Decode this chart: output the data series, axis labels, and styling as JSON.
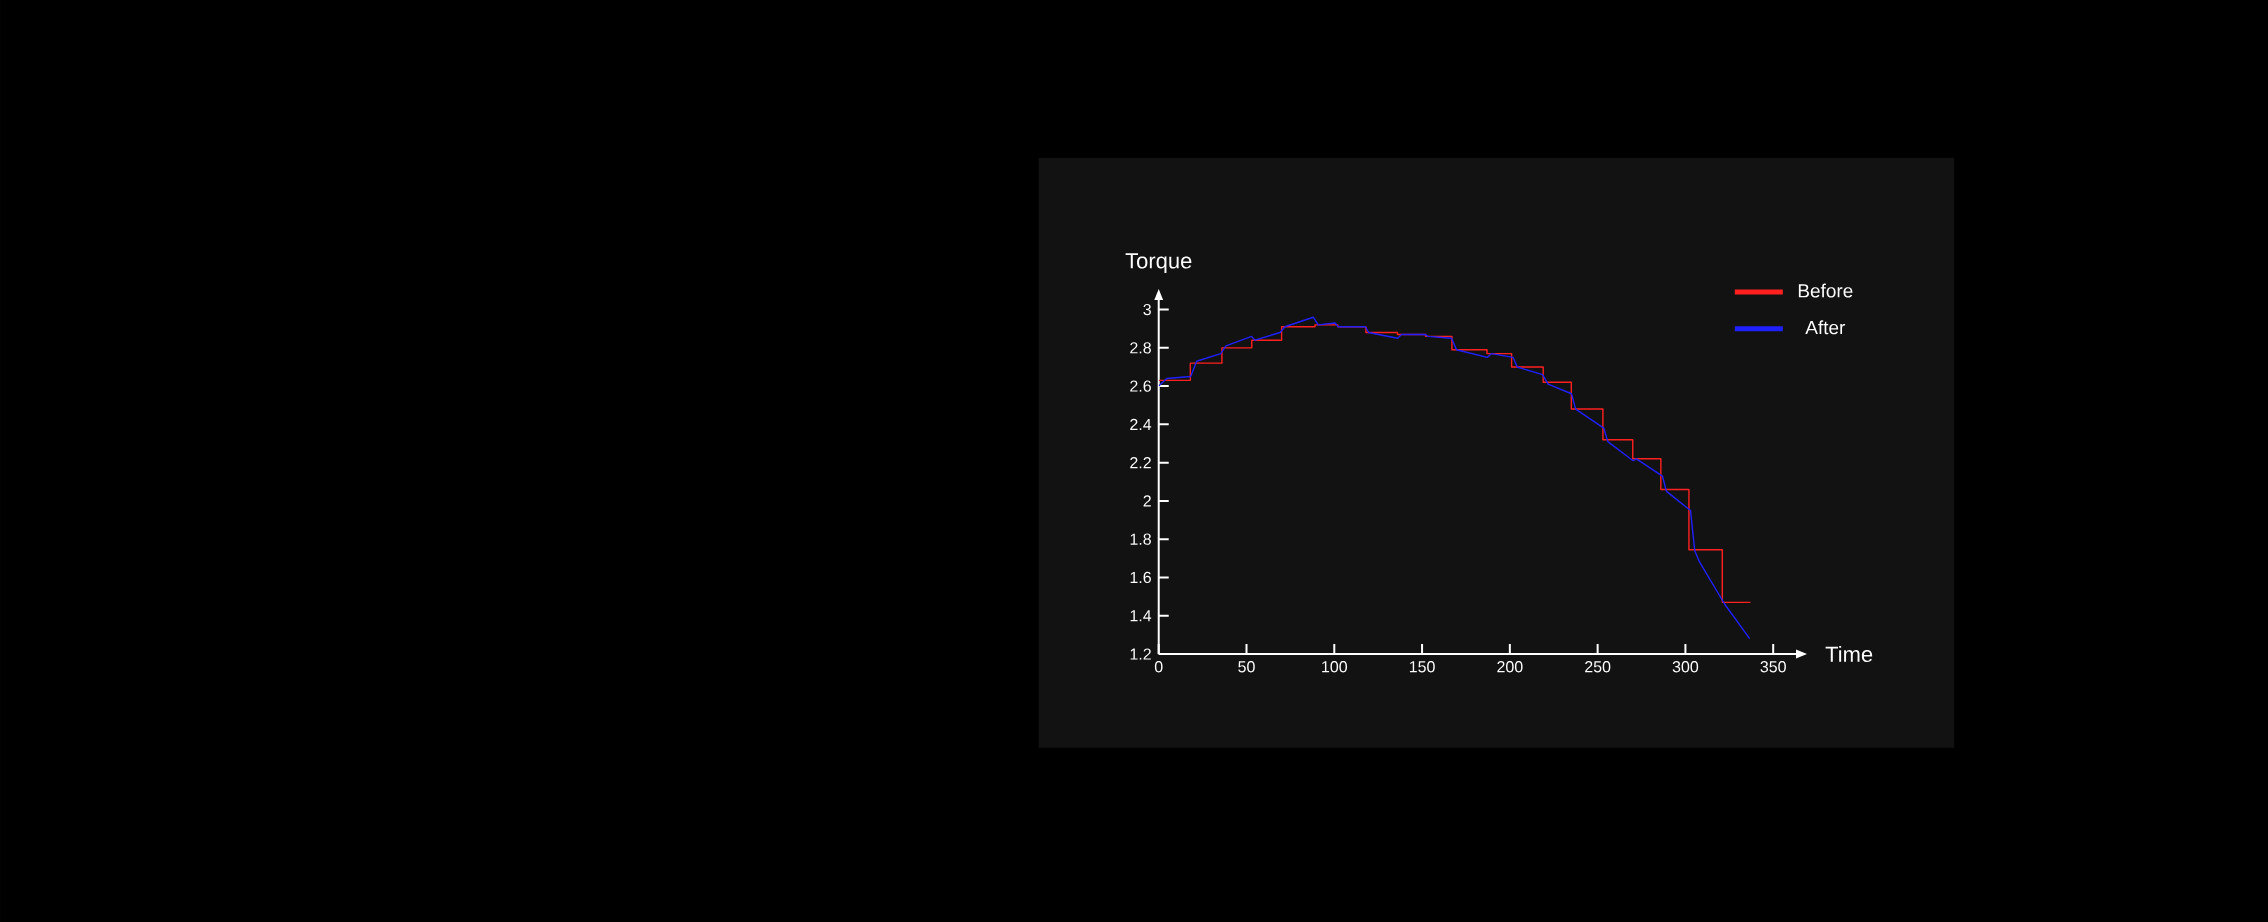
{
  "chart_data": {
    "type": "line",
    "xlabel": "Time",
    "ylabel": "Torque",
    "xlim": [
      0,
      363
    ],
    "ylim": [
      1.2,
      3.05
    ],
    "xticks": [
      0,
      50,
      100,
      150,
      200,
      250,
      300,
      350
    ],
    "yticks": [
      1.2,
      1.4,
      1.6,
      1.8,
      2,
      2.2,
      2.4,
      2.6,
      2.8,
      3
    ],
    "grid": false,
    "legend": "top right",
    "marker": "none",
    "line_style": "solid",
    "series": [
      {
        "name": "Before",
        "type": "step",
        "color": "#ff2020",
        "x": [
          0,
          18,
          36,
          53,
          70,
          89,
          102,
          118,
          136,
          152,
          167,
          187,
          201,
          219,
          235,
          253,
          270,
          286,
          302,
          321,
          337
        ],
        "values": [
          2.63,
          2.72,
          2.8,
          2.84,
          2.91,
          2.92,
          2.91,
          2.88,
          2.87,
          2.86,
          2.79,
          2.77,
          2.7,
          2.62,
          2.48,
          2.32,
          2.22,
          2.06,
          1.745,
          1.47,
          1.47
        ]
      },
      {
        "name": "After",
        "color": "#2020ff",
        "x": [
          0,
          4.6,
          18.2,
          21.6,
          35.3,
          38.3,
          52.9,
          54.8,
          69.1,
          71.9,
          88,
          90.9,
          100.4,
          102.3,
          117.8,
          119.5,
          136.1,
          138.3,
          151.6,
          153.5,
          166.8,
          169.6,
          187.1,
          189.6,
          201.9,
          204.2,
          218.6,
          221.8,
          235.1,
          237.5,
          253.5,
          255.8,
          270.2,
          272.1,
          286.9,
          289.2,
          302.9,
          305.3,
          308.1,
          322.4,
          336.6
        ],
        "values": [
          2.6,
          2.64,
          2.65,
          2.73,
          2.77,
          2.81,
          2.86,
          2.84,
          2.88,
          2.91,
          2.96,
          2.92,
          2.93,
          2.91,
          2.91,
          2.88,
          2.85,
          2.87,
          2.87,
          2.86,
          2.85,
          2.79,
          2.75,
          2.77,
          2.75,
          2.7,
          2.66,
          2.61,
          2.56,
          2.48,
          2.38,
          2.31,
          2.21,
          2.22,
          2.13,
          2.05,
          1.95,
          1.74,
          1.68,
          1.46,
          1.28
        ]
      }
    ]
  }
}
